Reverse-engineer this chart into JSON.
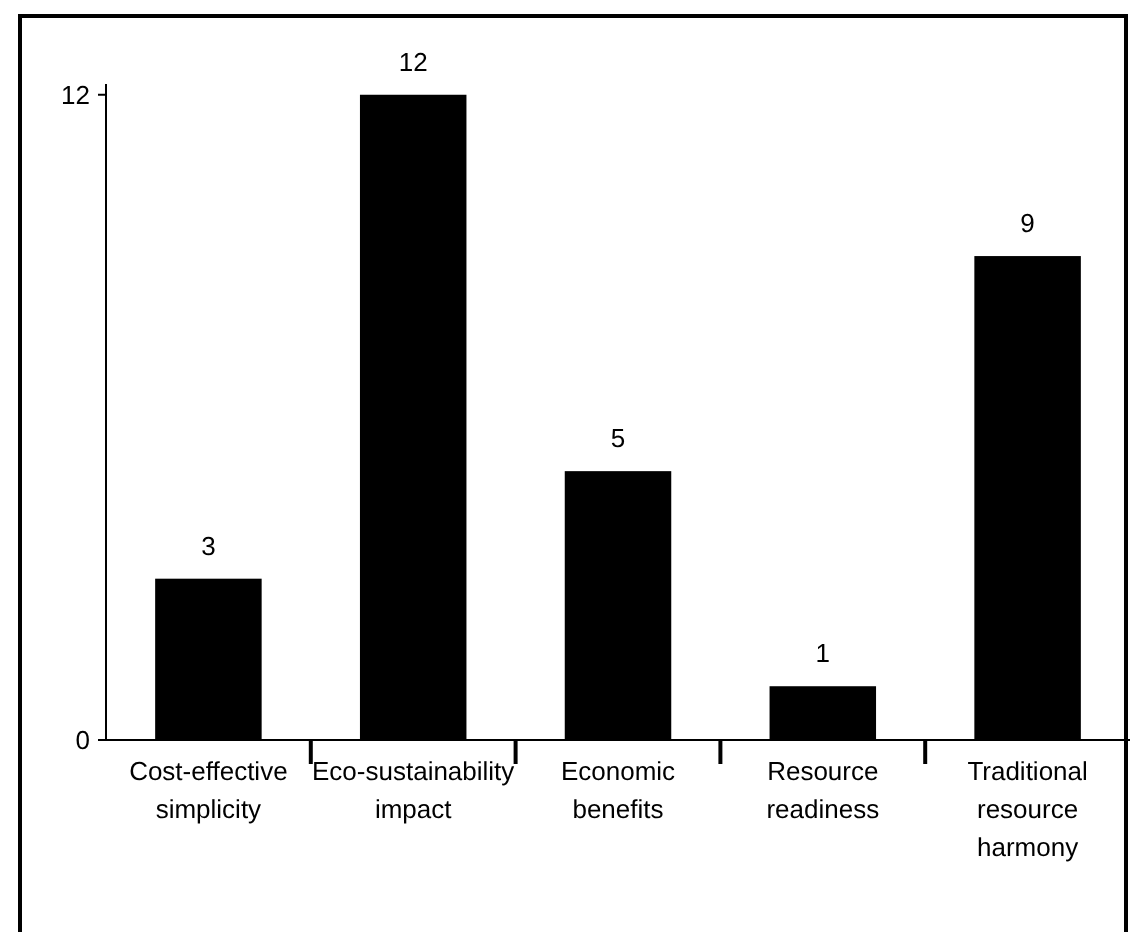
{
  "chart_data": {
    "type": "bar",
    "categories": [
      "Cost-effective simplicity",
      "Eco-sustainability impact",
      "Economic benefits",
      "Resource readiness",
      "Traditional resource harmony"
    ],
    "values": [
      3,
      12,
      5,
      1,
      9
    ],
    "color": "#000000",
    "ylim": [
      0,
      12.2
    ],
    "yticks": [
      0,
      12
    ],
    "grid": false,
    "data_labels": true
  }
}
